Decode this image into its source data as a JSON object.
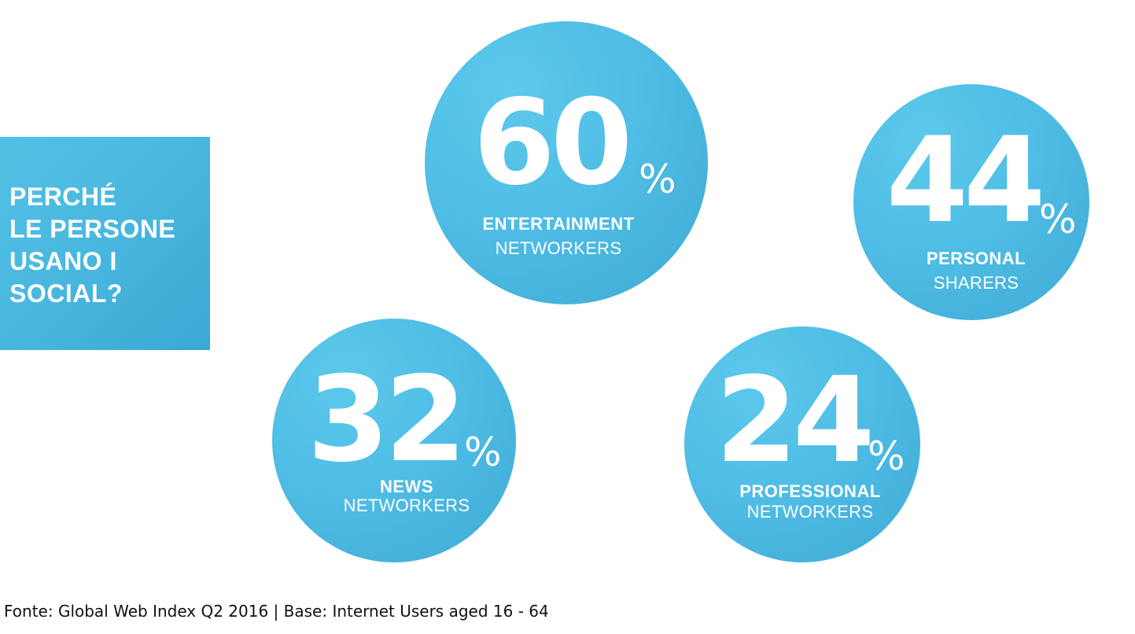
{
  "title": {
    "lines": [
      "PERCHÉ",
      "LE PERSONE",
      "USANO I",
      "SOCIAL?"
    ]
  },
  "stats": [
    {
      "value": "60",
      "unit": "%",
      "label_bold": "ENTERTAINMENT",
      "label_light": "NETWORKERS"
    },
    {
      "value": "44",
      "unit": "%",
      "label_bold": "PERSONAL",
      "label_light": "SHARERS"
    },
    {
      "value": "32",
      "unit": "%",
      "label_bold": "NEWS",
      "label_light": "NETWORKERS"
    },
    {
      "value": "24",
      "unit": "%",
      "label_bold": "PROFESSIONAL",
      "label_light": "NETWORKERS"
    }
  ],
  "source": "Fonte: Global Web Index Q2 2016 | Base: Internet Users aged 16 - 64",
  "colors": {
    "accent": "#4fbde5",
    "text_on_accent": "#ffffff"
  }
}
